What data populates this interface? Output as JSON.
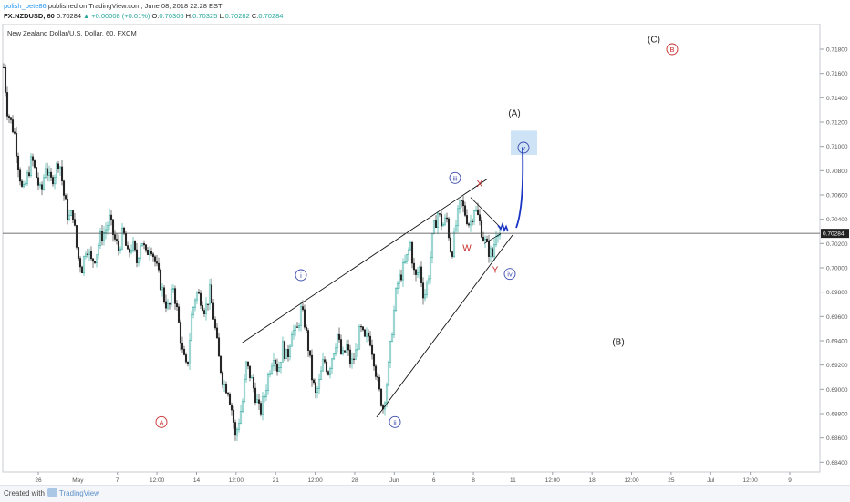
{
  "header": {
    "author": "polish_pete86",
    "published": "published on TradingView.com, June 08, 2018 22:28 EST",
    "quote": {
      "symbol_tf": "FX:NZDUSD, 60",
      "last": "0.70284",
      "change": "+0.00008 (+0.01%)",
      "o_label": "O:",
      "o": "0.70306",
      "h_label": "H:",
      "h": "0.70325",
      "l_label": "L:",
      "l": "0.70282",
      "c_label": "C:",
      "c": "0.70284"
    }
  },
  "footer": {
    "created_with": "Created with",
    "brand": "TradingView"
  },
  "chart_data": {
    "type": "candlestick",
    "title": "New Zealand Dollar/U.S. Dollar, 60, FXCM",
    "ylim": [
      0.6832,
      0.7201
    ],
    "y_ticks": [
      "0.71800",
      "0.71600",
      "0.71400",
      "0.71200",
      "0.71000",
      "0.70800",
      "0.70600",
      "0.70400",
      "0.70200",
      "0.70000",
      "0.69800",
      "0.69600",
      "0.69400",
      "0.69200",
      "0.69000",
      "0.68800",
      "0.68600",
      "0.68400"
    ],
    "x_ticks": [
      "26",
      "May",
      "7",
      "12:00",
      "14",
      "12:00",
      "21",
      "12:00",
      "28",
      "Jun",
      "6",
      "8",
      "11",
      "12:00",
      "18",
      "12:00",
      "25",
      "Jul",
      "12:00",
      "9"
    ],
    "last_price_label": "0.70284",
    "last_price": 0.70284,
    "price_path": [
      [
        0,
        0.7185
      ],
      [
        4,
        0.7165
      ],
      [
        8,
        0.713
      ],
      [
        12,
        0.712
      ],
      [
        16,
        0.711
      ],
      [
        20,
        0.7085
      ],
      [
        25,
        0.706
      ],
      [
        30,
        0.7075
      ],
      [
        35,
        0.709
      ],
      [
        40,
        0.7075
      ],
      [
        45,
        0.706
      ],
      [
        50,
        0.7085
      ],
      [
        55,
        0.707
      ],
      [
        60,
        0.7078
      ],
      [
        65,
        0.709
      ],
      [
        70,
        0.706
      ],
      [
        75,
        0.704
      ],
      [
        80,
        0.7045
      ],
      [
        85,
        0.701
      ],
      [
        90,
        0.7
      ],
      [
        95,
        0.702
      ],
      [
        100,
        0.7005
      ],
      [
        105,
        0.701
      ],
      [
        110,
        0.7025
      ],
      [
        115,
        0.703
      ],
      [
        120,
        0.704
      ],
      [
        125,
        0.7025
      ],
      [
        130,
        0.7015
      ],
      [
        135,
        0.703
      ],
      [
        140,
        0.701
      ],
      [
        145,
        0.702
      ],
      [
        150,
        0.7005
      ],
      [
        155,
        0.7025
      ],
      [
        160,
        0.701
      ],
      [
        165,
        0.702
      ],
      [
        170,
        0.7005
      ],
      [
        175,
        0.699
      ],
      [
        180,
        0.6975
      ],
      [
        185,
        0.6965
      ],
      [
        190,
        0.6985
      ],
      [
        195,
        0.696
      ],
      [
        200,
        0.693
      ],
      [
        205,
        0.6915
      ],
      [
        210,
        0.696
      ],
      [
        215,
        0.698
      ],
      [
        220,
        0.6975
      ],
      [
        225,
        0.6965
      ],
      [
        230,
        0.698
      ],
      [
        235,
        0.6955
      ],
      [
        240,
        0.6925
      ],
      [
        245,
        0.6905
      ],
      [
        250,
        0.69
      ],
      [
        255,
        0.688
      ],
      [
        258,
        0.686
      ],
      [
        262,
        0.6875
      ],
      [
        266,
        0.689
      ],
      [
        270,
        0.692
      ],
      [
        275,
        0.691
      ],
      [
        280,
        0.6895
      ],
      [
        285,
        0.688
      ],
      [
        290,
        0.6895
      ],
      [
        295,
        0.6915
      ],
      [
        300,
        0.693
      ],
      [
        305,
        0.6915
      ],
      [
        310,
        0.6935
      ],
      [
        315,
        0.6925
      ],
      [
        320,
        0.695
      ],
      [
        325,
        0.6945
      ],
      [
        330,
        0.6965
      ],
      [
        334,
        0.6955
      ],
      [
        338,
        0.6935
      ],
      [
        342,
        0.691
      ],
      [
        346,
        0.6895
      ],
      [
        350,
        0.6905
      ],
      [
        355,
        0.6925
      ],
      [
        360,
        0.6915
      ],
      [
        365,
        0.693
      ],
      [
        370,
        0.6945
      ],
      [
        375,
        0.6925
      ],
      [
        380,
        0.6935
      ],
      [
        385,
        0.692
      ],
      [
        390,
        0.693
      ],
      [
        395,
        0.695
      ],
      [
        400,
        0.694
      ],
      [
        405,
        0.6945
      ],
      [
        410,
        0.6925
      ],
      [
        415,
        0.69
      ],
      [
        420,
        0.6885
      ],
      [
        425,
        0.691
      ],
      [
        430,
        0.695
      ],
      [
        435,
        0.6985
      ],
      [
        440,
        0.6995
      ],
      [
        445,
        0.7005
      ],
      [
        450,
        0.702
      ],
      [
        455,
        0.699
      ],
      [
        460,
        0.7
      ],
      [
        465,
        0.6975
      ],
      [
        470,
        0.6995
      ],
      [
        475,
        0.703
      ],
      [
        480,
        0.7045
      ],
      [
        485,
        0.7035
      ],
      [
        490,
        0.704
      ],
      [
        495,
        0.701
      ],
      [
        500,
        0.7035
      ],
      [
        505,
        0.7055
      ],
      [
        510,
        0.7045
      ],
      [
        515,
        0.7035
      ],
      [
        520,
        0.705
      ],
      [
        525,
        0.704
      ],
      [
        530,
        0.7025
      ],
      [
        535,
        0.7015
      ],
      [
        540,
        0.701
      ],
      [
        545,
        0.7035
      ],
      [
        548,
        0.7028
      ]
    ],
    "upper_channel": {
      "from": [
        265,
        0.6938
      ],
      "to": [
        534,
        0.7073
      ]
    },
    "lower_channel": {
      "from": [
        413,
        0.6877
      ],
      "to": [
        562,
        0.7027
      ]
    },
    "wave_labels": [
      {
        "text": "(C)",
        "x": 717,
        "y": 0.7188,
        "style": "plain",
        "color": "#222222"
      },
      {
        "text": "B",
        "x": 737,
        "y": 0.718,
        "style": "circle",
        "color": "#c62828"
      },
      {
        "text": "(A)",
        "x": 564,
        "y": 0.7127,
        "style": "plain",
        "color": "#222222"
      },
      {
        "text": "v",
        "x": 574,
        "y": 0.7099,
        "style": "circle",
        "color": "#3949ab"
      },
      {
        "text": "iii",
        "x": 499,
        "y": 0.7074,
        "style": "circle",
        "color": "#3949ab"
      },
      {
        "text": "X",
        "x": 526,
        "y": 0.7069,
        "style": "plain",
        "color": "#c62828"
      },
      {
        "text": "W",
        "x": 512,
        "y": 0.7016,
        "style": "plain",
        "color": "#c62828"
      },
      {
        "text": "Y",
        "x": 543,
        "y": 0.6998,
        "style": "plain",
        "color": "#c62828"
      },
      {
        "text": "iv",
        "x": 559,
        "y": 0.6995,
        "style": "circle",
        "color": "#3949ab"
      },
      {
        "text": "i",
        "x": 330,
        "y": 0.6994,
        "style": "circle",
        "color": "#3949ab"
      },
      {
        "text": "(B)",
        "x": 678,
        "y": 0.6939,
        "style": "plain",
        "color": "#222222"
      },
      {
        "text": "A",
        "x": 177,
        "y": 0.6873,
        "style": "circle",
        "color": "#c62828"
      },
      {
        "text": "ii",
        "x": 433,
        "y": 0.6873,
        "style": "circle",
        "color": "#3949ab"
      }
    ],
    "projection_color": "#1a35c4",
    "target_box_color": "#cfe3f7",
    "colors": {
      "up": "#26a69a",
      "down": "#222222",
      "label_red": "#c62828",
      "label_blue": "#3949ab"
    }
  }
}
